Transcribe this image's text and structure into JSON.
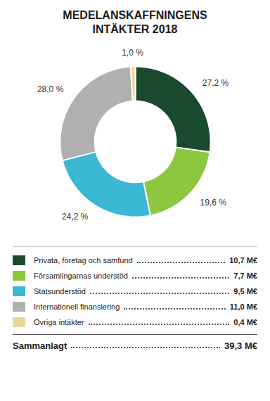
{
  "chart_data": {
    "type": "pie",
    "title": "MEDELANSKAFFNINGENS\nINTÄKTER 2018",
    "categories": [
      "Privata, företag och samfund",
      "Församlingarnas understöd",
      "Statsunderstöd",
      "Internationell finansiering",
      "Övriga intäkter"
    ],
    "values": [
      27.2,
      19.6,
      24.2,
      28.0,
      1.0
    ],
    "value_labels": [
      "27,2 %",
      "19,6 %",
      "24,2 %",
      "28,0 %",
      "1,0 %"
    ],
    "colors": [
      "#1a4a2e",
      "#8dc63f",
      "#3bb8d4",
      "#b0b0b0",
      "#e8d89a"
    ],
    "data_labels": true,
    "legend": "bottom",
    "amounts": [
      10.7,
      7.7,
      9.5,
      11.0,
      0.4
    ],
    "amount_labels": [
      "10,7 M€",
      "7,7 M€",
      "9,5 M€",
      "11,0 M€",
      "0,4 M€"
    ],
    "total_label": "Sammanlagt",
    "total": 39.3,
    "total_value_label": "39,3 M€"
  }
}
